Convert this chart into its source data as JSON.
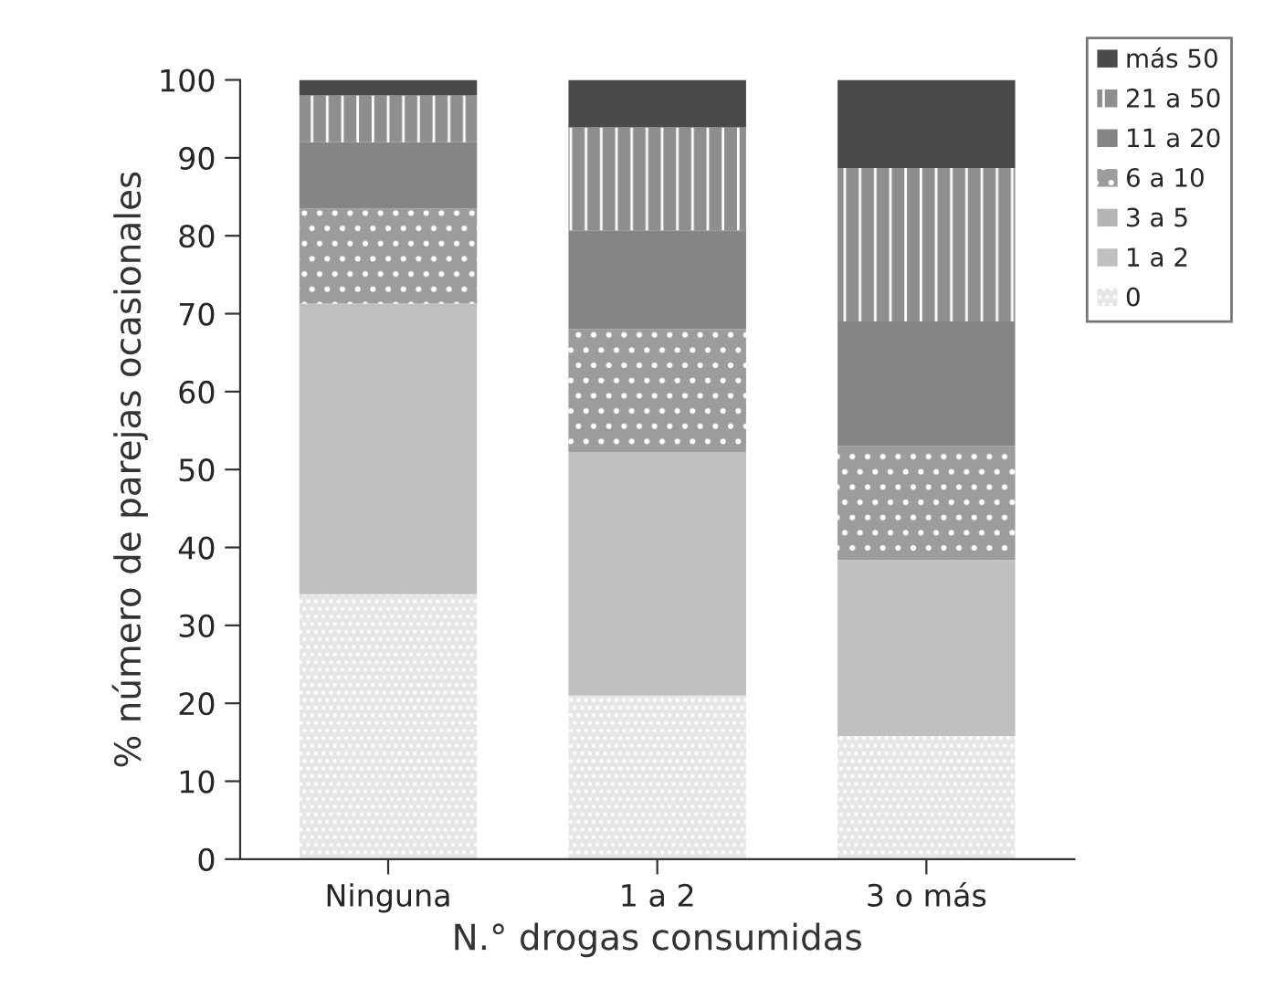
{
  "chart_data": {
    "type": "bar",
    "stacked": true,
    "categories": [
      "Ninguna",
      "1 a 2",
      "3 o más"
    ],
    "xlabel": "N.° drogas consumidas",
    "ylabel": "% número de parejas ocasionales",
    "ylim": [
      0,
      100
    ],
    "yticks": [
      0,
      10,
      20,
      30,
      40,
      50,
      60,
      70,
      80,
      90,
      100
    ],
    "legend": "top right",
    "grid": false,
    "series": [
      {
        "name": "0",
        "color": "#e6e6e6",
        "values": [
          34,
          21,
          15.8
        ]
      },
      {
        "name": "1 a 2",
        "color": "#c0c0c2",
        "values": [
          37.3,
          31.2,
          22.6
        ]
      },
      {
        "name": "3 a 5",
        "color": "#b5b5b7",
        "values": [
          null,
          null,
          null
        ]
      },
      {
        "name": "6 a 10",
        "color": "#9c9c9e",
        "values": [
          12.2,
          15.8,
          14.6
        ]
      },
      {
        "name": "11 a 20",
        "color": "#858587",
        "values": [
          8.5,
          12.7,
          16
        ]
      },
      {
        "name": "21 a 50",
        "color": "#8e8e8e",
        "values": [
          6,
          13.2,
          19.7
        ]
      },
      {
        "name": "más 50",
        "color": "#4a4a4a",
        "values": [
          2,
          6.1,
          11.3
        ]
      }
    ]
  }
}
